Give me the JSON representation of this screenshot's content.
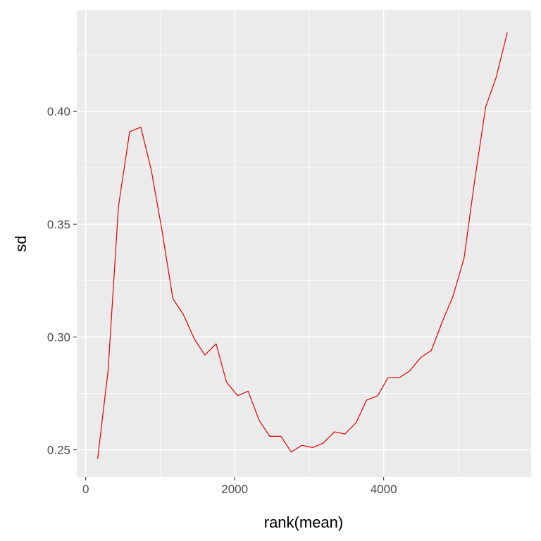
{
  "chart_data": {
    "type": "line",
    "xlabel": "rank(mean)",
    "ylabel": "sd",
    "xlim": [
      -120,
      5980
    ],
    "ylim": [
      0.238,
      0.445
    ],
    "x_ticks": [
      0,
      2000,
      4000
    ],
    "x_tick_labels": [
      "0",
      "2000",
      "4000"
    ],
    "x_minor_ticks": [
      1000,
      3000,
      5000
    ],
    "y_ticks": [
      0.25,
      0.3,
      0.35,
      0.4
    ],
    "y_tick_labels": [
      "0.25",
      "0.30",
      "0.35",
      "0.40"
    ],
    "y_minor_ticks": [
      0.275,
      0.325,
      0.375,
      0.425
    ],
    "grid": true,
    "colors": {
      "line": "#e00000",
      "panel": "#ebebeb",
      "grid": "#ffffff"
    },
    "series": [
      {
        "x": [
          160,
          300,
          440,
          590,
          740,
          880,
          1020,
          1170,
          1310,
          1460,
          1600,
          1750,
          1890,
          2040,
          2180,
          2330,
          2470,
          2620,
          2760,
          2900,
          3050,
          3190,
          3340,
          3480,
          3630,
          3770,
          3920,
          4060,
          4210,
          4350,
          4500,
          4640,
          4790,
          4930,
          5080,
          5220,
          5370,
          5510,
          5660
        ],
        "y": [
          0.246,
          0.285,
          0.358,
          0.391,
          0.393,
          0.374,
          0.348,
          0.317,
          0.31,
          0.299,
          0.292,
          0.297,
          0.28,
          0.274,
          0.276,
          0.263,
          0.256,
          0.256,
          0.249,
          0.252,
          0.251,
          0.253,
          0.258,
          0.257,
          0.262,
          0.272,
          0.274,
          0.282,
          0.282,
          0.285,
          0.291,
          0.294,
          0.307,
          0.318,
          0.335,
          0.369,
          0.402,
          0.415,
          0.435
        ]
      }
    ]
  }
}
